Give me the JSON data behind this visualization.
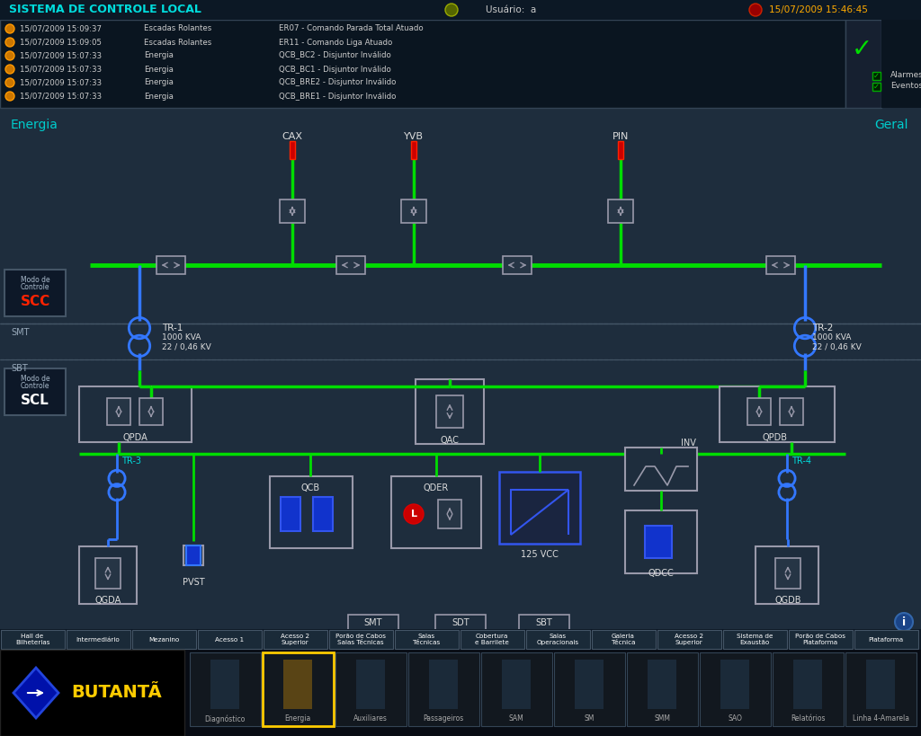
{
  "bg_color": "#1e2d3d",
  "title_bar_bg": "#0c1825",
  "title_text": "SISTEMA DE CONTROLE LOCAL",
  "user_text": "Usuário:  a",
  "date_text": "15/07/2009 15:46:45",
  "green_line": "#00dd00",
  "blue_line": "#3377ff",
  "red_color": "#dd0000",
  "blue_color": "#2255ee",
  "gray_color": "#9999aa",
  "alarm_rows": [
    [
      "15/07/2009 15:09:37",
      "Escadas Rolantes",
      "ER07 - Comando Parada Total Atuado"
    ],
    [
      "15/07/2009 15:09:05",
      "Escadas Rolantes",
      "ER11 - Comando Liga Atuado"
    ],
    [
      "15/07/2009 15:07:33",
      "Energia",
      "QCB_BC2 - Disjuntor Inválido"
    ],
    [
      "15/07/2009 15:07:33",
      "Energia",
      "QCB_BC1 - Disjuntor Inválido"
    ],
    [
      "15/07/2009 15:07:33",
      "Energia",
      "QCB_BRE2 - Disjuntor Inválido"
    ],
    [
      "15/07/2009 15:07:33",
      "Energia",
      "QCB_BRE1 - Disjuntor Inválido"
    ]
  ],
  "nav_buttons": [
    "Hall de\nBilheterias",
    "Intermediário",
    "Mezanino",
    "Acesso 1",
    "Acesso 2\nSuperior",
    "Porão de Cabos\nSalas Técnicas",
    "Salas\nTécnicas",
    "Cobertura\ne Barrilete",
    "Salas\nOperacionais",
    "Galeria\nTécnica",
    "Acesso 2\nSuperior",
    "Sistema de\nExaustão",
    "Porão de Cabos\nPlataforma",
    "Plataforma"
  ],
  "bottom_icons": [
    "Diagnóstico",
    "Energia",
    "Auxiliares",
    "Passageiros",
    "SAM",
    "SM",
    "SMM",
    "SAO",
    "Relatórios",
    "Linha 4-Amarela"
  ],
  "smt_tabs": [
    "SMT",
    "SDT",
    "SBT"
  ]
}
